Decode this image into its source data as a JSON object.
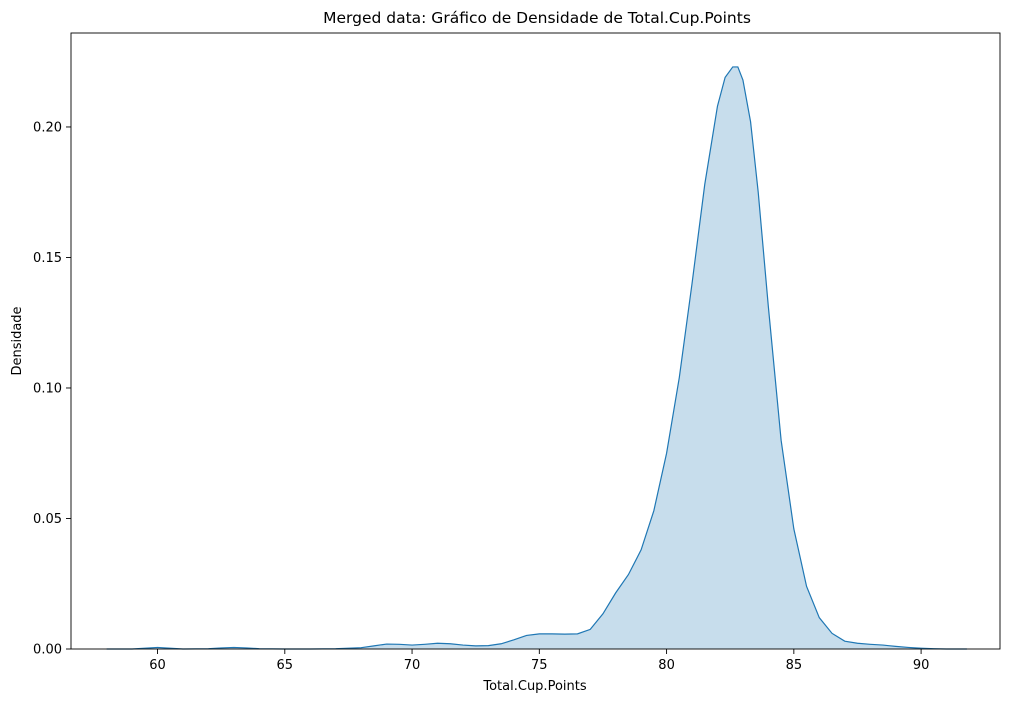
{
  "chart_data": {
    "type": "area",
    "title": "Merged data: Gráfico de Densidade de Total.Cup.Points",
    "xlabel": "Total.Cup.Points",
    "ylabel": "Densidade",
    "xlim": [
      56.6,
      93.1
    ],
    "ylim": [
      0,
      0.236
    ],
    "xticks": [
      60,
      65,
      70,
      75,
      80,
      85,
      90
    ],
    "xtick_labels": [
      "60",
      "65",
      "70",
      "75",
      "80",
      "85",
      "90"
    ],
    "yticks": [
      0,
      0.05,
      0.1,
      0.15,
      0.2
    ],
    "ytick_labels": [
      "0.00",
      "0.05",
      "0.10",
      "0.15",
      "0.20"
    ],
    "grid": false,
    "colors": {
      "line": "#1f77b4",
      "fill": "#1f77b4",
      "fill_opacity": 0.25
    },
    "series": [
      {
        "x": [
          58.0,
          59.0,
          59.5,
          60.0,
          60.5,
          61.0,
          62.0,
          62.5,
          63.0,
          63.5,
          64.0,
          65.0,
          66.0,
          67.0,
          68.0,
          68.5,
          69.0,
          69.5,
          70.0,
          70.5,
          71.0,
          71.5,
          72.0,
          72.5,
          73.0,
          73.5,
          74.0,
          74.5,
          75.0,
          75.5,
          76.0,
          76.5,
          77.0,
          77.5,
          78.0,
          78.5,
          79.0,
          79.5,
          80.0,
          80.5,
          81.0,
          81.5,
          82.0,
          82.3,
          82.6,
          82.8,
          83.0,
          83.3,
          83.6,
          84.0,
          84.5,
          85.0,
          85.5,
          86.0,
          86.5,
          87.0,
          87.5,
          88.0,
          88.5,
          89.0,
          89.5,
          90.0,
          90.5,
          91.0,
          91.8
        ],
        "y": [
          0.0,
          0.0,
          0.0003,
          0.0006,
          0.0003,
          0.0,
          0.0001,
          0.0004,
          0.0006,
          0.0004,
          0.0001,
          0.0,
          0.0,
          0.0001,
          0.0005,
          0.0012,
          0.0019,
          0.0018,
          0.0015,
          0.0018,
          0.0022,
          0.002,
          0.0015,
          0.0012,
          0.0013,
          0.002,
          0.0035,
          0.0052,
          0.0058,
          0.0058,
          0.0057,
          0.0058,
          0.0075,
          0.0135,
          0.0215,
          0.0285,
          0.038,
          0.053,
          0.075,
          0.104,
          0.14,
          0.178,
          0.208,
          0.219,
          0.223,
          0.223,
          0.218,
          0.202,
          0.175,
          0.131,
          0.08,
          0.046,
          0.024,
          0.012,
          0.006,
          0.003,
          0.0022,
          0.0018,
          0.0015,
          0.001,
          0.0006,
          0.0003,
          0.0001,
          0.0,
          0.0
        ]
      }
    ]
  }
}
